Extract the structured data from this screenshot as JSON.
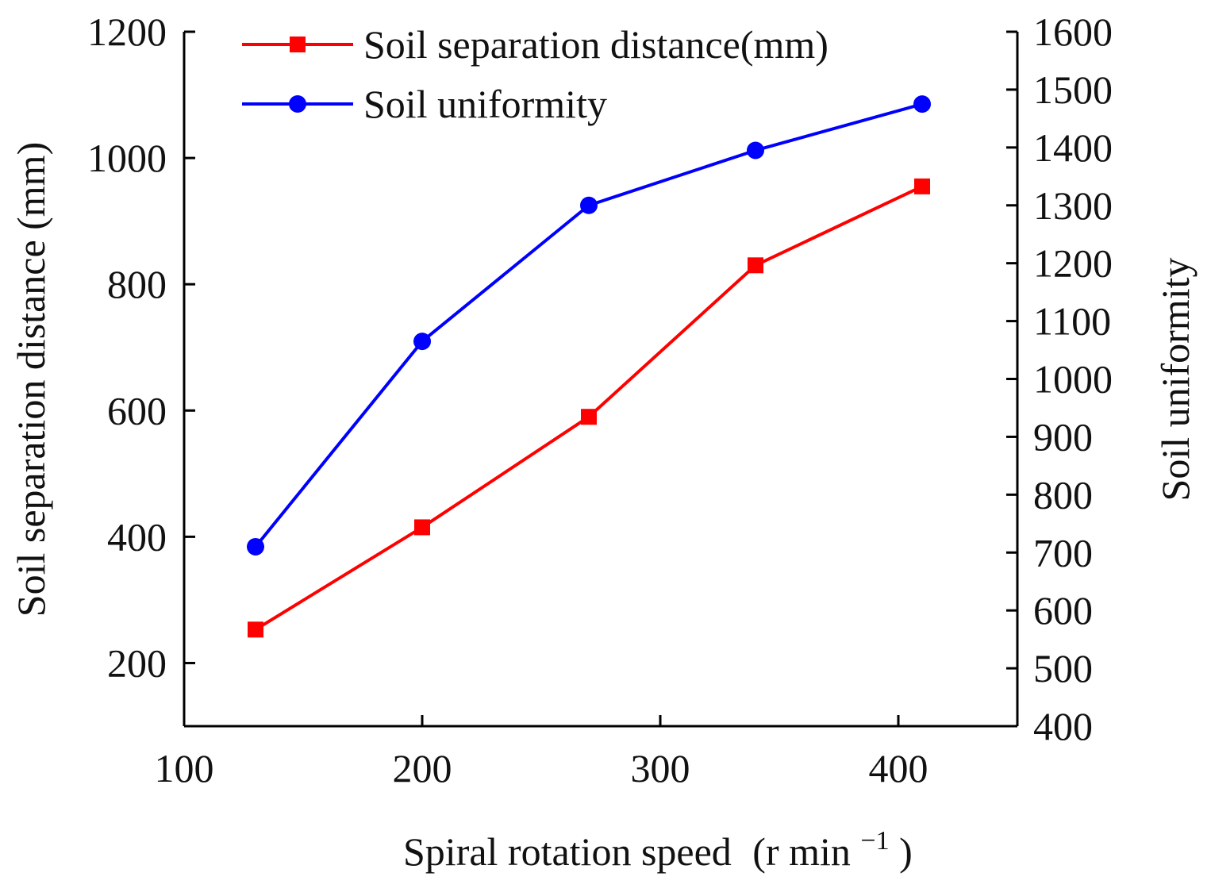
{
  "chart_data": {
    "type": "line",
    "x": [
      130,
      200,
      270,
      340,
      410
    ],
    "xlabel_main": "Spiral rotation speed",
    "xlabel_unit_open": "(r min",
    "xlabel_unit_sup": "−1",
    "xlabel_unit_close": ")",
    "xlim": [
      100,
      450
    ],
    "xticks": [
      "100",
      "200",
      "300",
      "400"
    ],
    "y_left": {
      "label": "Soil separation distance (mm)",
      "lim": [
        100,
        1200
      ],
      "ticks": [
        "200",
        "400",
        "600",
        "800",
        "1000",
        "1200"
      ]
    },
    "y_right": {
      "label": "Soil uniformity",
      "lim": [
        400,
        1600
      ],
      "ticks": [
        "400",
        "500",
        "600",
        "700",
        "800",
        "900",
        "1000",
        "1100",
        "1200",
        "1300",
        "1400",
        "1500",
        "1600"
      ]
    },
    "series": [
      {
        "name": "Soil separation distance(mm)",
        "axis": "left",
        "color": "#ff0000",
        "marker": "square",
        "values": [
          253,
          415,
          590,
          830,
          955
        ]
      },
      {
        "name": "Soil uniformity",
        "axis": "right",
        "color": "#0000ff",
        "marker": "circle",
        "values": [
          710,
          1065,
          1300,
          1395,
          1475
        ]
      }
    ],
    "grid": false,
    "legend_position": "top-left"
  }
}
